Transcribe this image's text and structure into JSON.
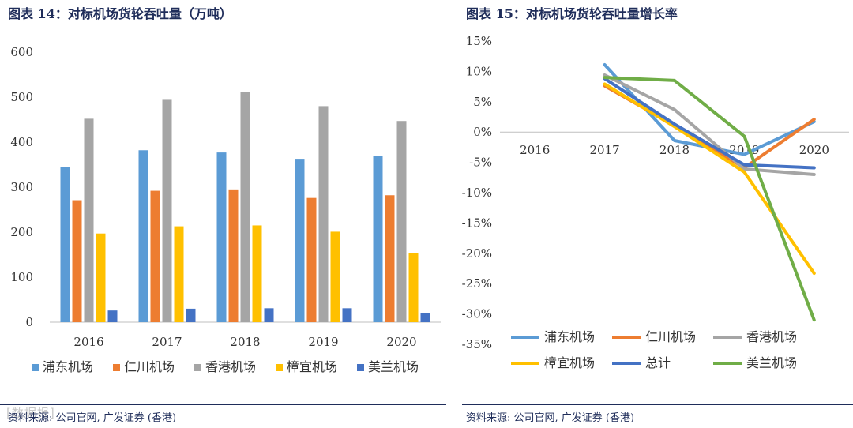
{
  "left_title": "图表 14：对标机场货轮吞吐量（万吨）",
  "right_title": "图表 15：对标机场货轮吞吐量增长率",
  "left_source": "资料来源: 公司官网, 广发证券 (香港)",
  "right_source": "资料来源: 公司官网, 广发证券 (香港)",
  "watermark": "[数据报]",
  "chart_data": [
    {
      "type": "bar",
      "title": "图表 14：对标机场货轮吞吐量（万吨）",
      "categories": [
        "2016",
        "2017",
        "2018",
        "2019",
        "2020"
      ],
      "ylim": [
        0,
        600
      ],
      "yticks": [
        "0",
        "100",
        "200",
        "300",
        "400",
        "500",
        "600"
      ],
      "grid": false,
      "legend_position": "bottom",
      "series": [
        {
          "name": "浦东机场",
          "color": "#5b9bd5",
          "values": [
            344,
            382,
            377,
            363,
            369
          ]
        },
        {
          "name": "仁川机场",
          "color": "#ed7d31",
          "values": [
            271,
            292,
            295,
            276,
            282
          ]
        },
        {
          "name": "香港机场",
          "color": "#a5a5a5",
          "values": [
            452,
            494,
            512,
            480,
            447
          ]
        },
        {
          "name": "樟宜机场",
          "color": "#ffc000",
          "values": [
            197,
            213,
            215,
            201,
            154
          ]
        },
        {
          "name": "美兰机场",
          "color": "#4472c4",
          "values": [
            26,
            30,
            31,
            31,
            21
          ]
        }
      ]
    },
    {
      "type": "line",
      "title": "图表 15：对标机场货轮吞吐量增长率",
      "categories": [
        "2016",
        "2017",
        "2018",
        "2019",
        "2020"
      ],
      "ylim": [
        -35,
        15
      ],
      "yticks": [
        "15%",
        "10%",
        "5%",
        "0%",
        "-5%",
        "-10%",
        "-15%",
        "-20%",
        "-25%",
        "-30%",
        "-35%"
      ],
      "grid": false,
      "legend_position": "bottom",
      "series": [
        {
          "name": "浦东机场",
          "color": "#5b9bd5",
          "values": [
            null,
            11.1,
            -1.4,
            -3.7,
            1.7
          ]
        },
        {
          "name": "仁川机场",
          "color": "#ed7d31",
          "values": [
            null,
            7.6,
            1.1,
            -5.9,
            2.1
          ]
        },
        {
          "name": "香港机场",
          "color": "#a5a5a5",
          "values": [
            null,
            9.4,
            3.7,
            -6.1,
            -7.0
          ]
        },
        {
          "name": "樟宜机场",
          "color": "#ffc000",
          "values": [
            null,
            7.9,
            0.9,
            -6.6,
            -23.3
          ]
        },
        {
          "name": "总计",
          "color": "#4472c4",
          "values": [
            null,
            8.8,
            1.3,
            -5.4,
            -5.9
          ]
        },
        {
          "name": "美兰机场",
          "color": "#70ad47",
          "values": [
            null,
            9.0,
            8.5,
            -0.7,
            -31.0
          ]
        }
      ]
    }
  ]
}
